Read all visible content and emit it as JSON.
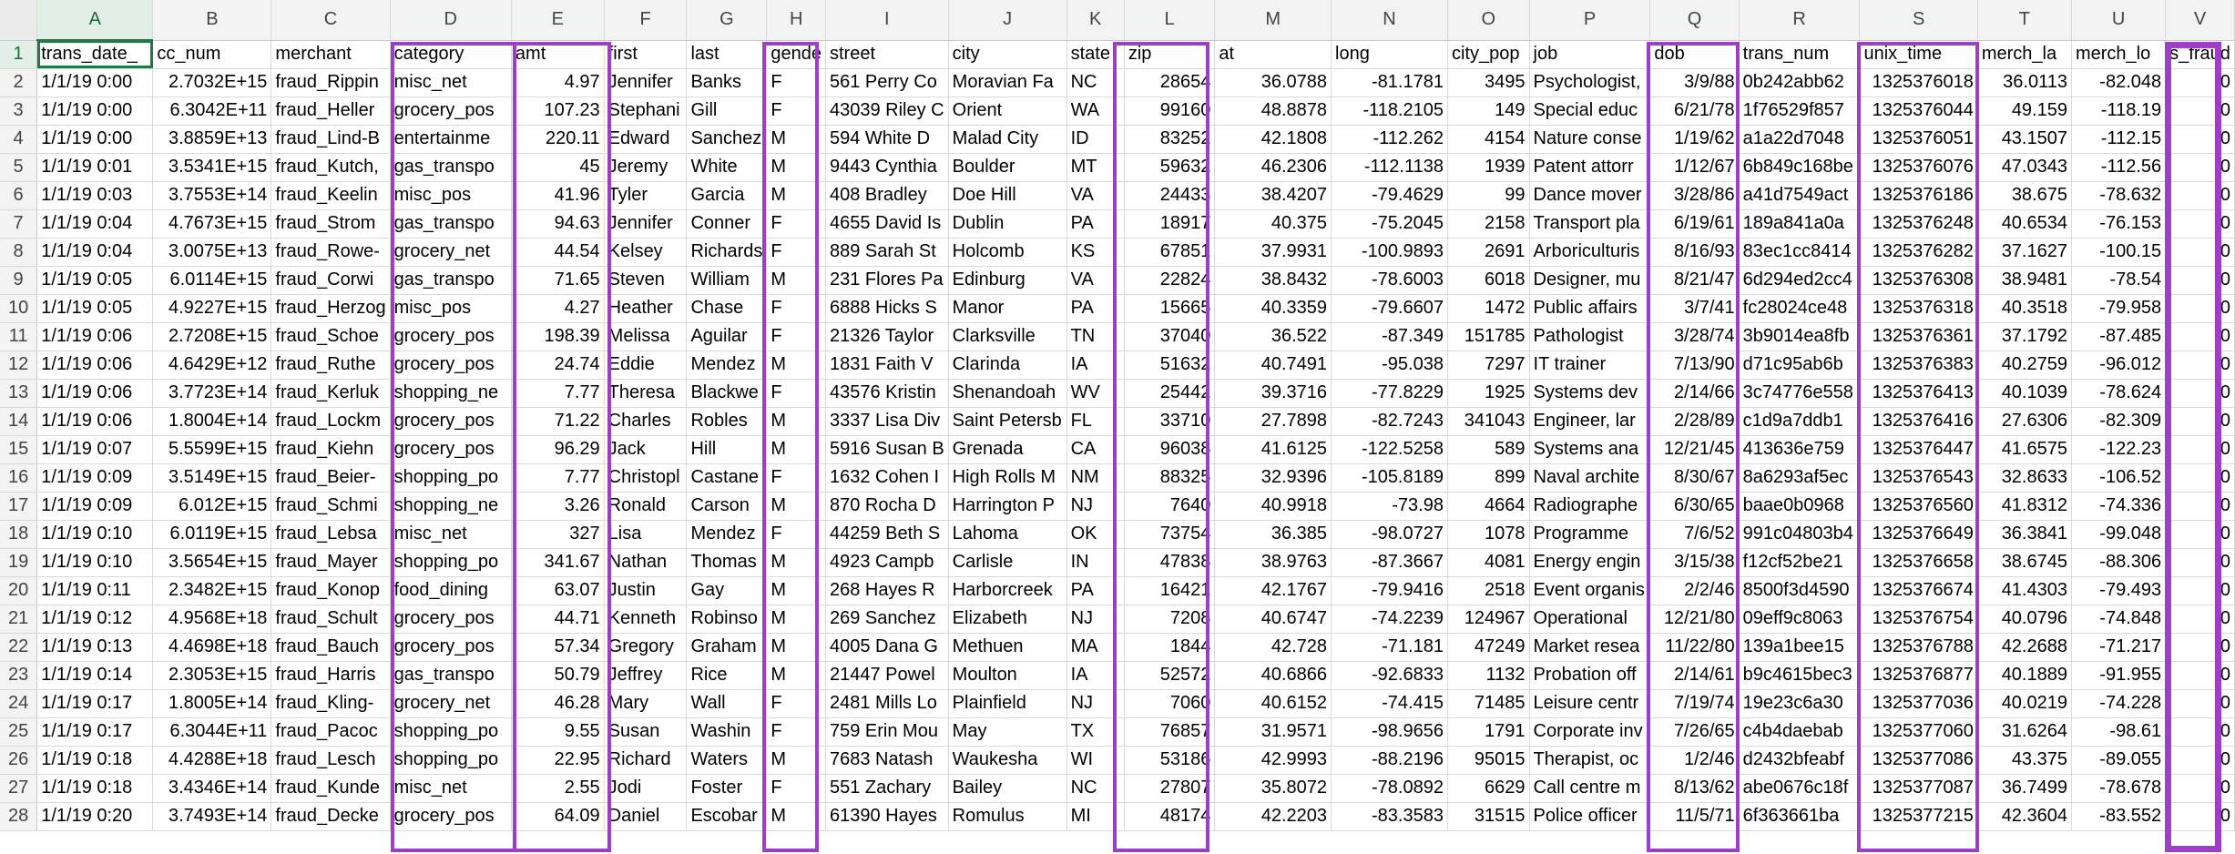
{
  "columns": [
    "A",
    "B",
    "C",
    "D",
    "E",
    "F",
    "G",
    "H",
    "I",
    "J",
    "K",
    "L",
    "M",
    "N",
    "O",
    "P",
    "Q",
    "R",
    "S",
    "T",
    "U",
    "V"
  ],
  "active_column": "A",
  "active_row": 1,
  "highlight_color": "#9b3fc5",
  "highlighted_columns": [
    "D",
    "E",
    "H",
    "L",
    "Q",
    "S",
    "V"
  ],
  "numeric_columns": [
    1,
    4,
    11,
    12,
    13,
    14,
    16,
    18,
    19,
    20,
    21
  ],
  "rows": [
    [
      "trans_date_",
      "cc_num",
      "merchant",
      "category",
      "amt",
      "first",
      "last",
      "gende",
      "street",
      "city",
      "state",
      "zip",
      "at",
      "long",
      "city_pop",
      "job",
      "dob",
      "trans_num",
      "unix_time",
      "merch_la",
      "merch_lo",
      "s_fraud"
    ],
    [
      "1/1/19 0:00",
      "2.7032E+15",
      "fraud_Rippin",
      "misc_net",
      "4.97",
      "Jennifer",
      "Banks",
      "F",
      "561 Perry Co",
      "Moravian Fa",
      "NC",
      "28654",
      "36.0788",
      "-81.1781",
      "3495",
      "Psychologist,",
      "3/9/88",
      "0b242abb62",
      "1325376018",
      "36.0113",
      "-82.048",
      "0"
    ],
    [
      "1/1/19 0:00",
      "6.3042E+11",
      "fraud_Heller",
      "grocery_pos",
      "107.23",
      "Stephani",
      "Gill",
      "F",
      "43039 Riley C",
      "Orient",
      "WA",
      "99160",
      "48.8878",
      "-118.2105",
      "149",
      "Special educ",
      "6/21/78",
      "1f76529f857",
      "1325376044",
      "49.159",
      "-118.19",
      "0"
    ],
    [
      "1/1/19 0:00",
      "3.8859E+13",
      "fraud_Lind-B",
      "entertainme",
      "220.11",
      "Edward",
      "Sanchez",
      "M",
      "594 White D",
      "Malad City",
      "ID",
      "83252",
      "42.1808",
      "-112.262",
      "4154",
      "Nature conse",
      "1/19/62",
      "a1a22d7048",
      "1325376051",
      "43.1507",
      "-112.15",
      "0"
    ],
    [
      "1/1/19 0:01",
      "3.5341E+15",
      "fraud_Kutch,",
      "gas_transpo",
      "45",
      "Jeremy",
      "White",
      "M",
      "9443 Cynthia",
      "Boulder",
      "MT",
      "59632",
      "46.2306",
      "-112.1138",
      "1939",
      "Patent attorr",
      "1/12/67",
      "6b849c168be",
      "1325376076",
      "47.0343",
      "-112.56",
      "0"
    ],
    [
      "1/1/19 0:03",
      "3.7553E+14",
      "fraud_Keelin",
      "misc_pos",
      "41.96",
      "Tyler",
      "Garcia",
      "M",
      "408 Bradley",
      "Doe Hill",
      "VA",
      "24433",
      "38.4207",
      "-79.4629",
      "99",
      "Dance mover",
      "3/28/86",
      "a41d7549act",
      "1325376186",
      "38.675",
      "-78.632",
      "0"
    ],
    [
      "1/1/19 0:04",
      "4.7673E+15",
      "fraud_Strom",
      "gas_transpo",
      "94.63",
      "Jennifer",
      "Conner",
      "F",
      "4655 David Is",
      "Dublin",
      "PA",
      "18917",
      "40.375",
      "-75.2045",
      "2158",
      "Transport pla",
      "6/19/61",
      "189a841a0a",
      "1325376248",
      "40.6534",
      "-76.153",
      "0"
    ],
    [
      "1/1/19 0:04",
      "3.0075E+13",
      "fraud_Rowe-",
      "grocery_net",
      "44.54",
      "Kelsey",
      "Richards",
      "F",
      "889 Sarah St",
      "Holcomb",
      "KS",
      "67851",
      "37.9931",
      "-100.9893",
      "2691",
      "Arboriculturis",
      "8/16/93",
      "83ec1cc8414",
      "1325376282",
      "37.1627",
      "-100.15",
      "0"
    ],
    [
      "1/1/19 0:05",
      "6.0114E+15",
      "fraud_Corwi",
      "gas_transpo",
      "71.65",
      "Steven",
      "William",
      "M",
      "231 Flores Pa",
      "Edinburg",
      "VA",
      "22824",
      "38.8432",
      "-78.6003",
      "6018",
      "Designer, mu",
      "8/21/47",
      "6d294ed2cc4",
      "1325376308",
      "38.9481",
      "-78.54",
      "0"
    ],
    [
      "1/1/19 0:05",
      "4.9227E+15",
      "fraud_Herzog",
      "misc_pos",
      "4.27",
      "Heather",
      "Chase",
      "F",
      "6888 Hicks S",
      "Manor",
      "PA",
      "15665",
      "40.3359",
      "-79.6607",
      "1472",
      "Public affairs",
      "3/7/41",
      "fc28024ce48",
      "1325376318",
      "40.3518",
      "-79.958",
      "0"
    ],
    [
      "1/1/19 0:06",
      "2.7208E+15",
      "fraud_Schoe",
      "grocery_pos",
      "198.39",
      "Melissa",
      "Aguilar",
      "F",
      "21326 Taylor",
      "Clarksville",
      "TN",
      "37040",
      "36.522",
      "-87.349",
      "151785",
      "Pathologist",
      "3/28/74",
      "3b9014ea8fb",
      "1325376361",
      "37.1792",
      "-87.485",
      "0"
    ],
    [
      "1/1/19 0:06",
      "4.6429E+12",
      "fraud_Ruthe",
      "grocery_pos",
      "24.74",
      "Eddie",
      "Mendez",
      "M",
      "1831 Faith V",
      "Clarinda",
      "IA",
      "51632",
      "40.7491",
      "-95.038",
      "7297",
      "IT trainer",
      "7/13/90",
      "d71c95ab6b",
      "1325376383",
      "40.2759",
      "-96.012",
      "0"
    ],
    [
      "1/1/19 0:06",
      "3.7723E+14",
      "fraud_Kerluk",
      "shopping_ne",
      "7.77",
      "Theresa",
      "Blackwe",
      "F",
      "43576 Kristin",
      "Shenandoah",
      "WV",
      "25442",
      "39.3716",
      "-77.8229",
      "1925",
      "Systems dev",
      "2/14/66",
      "3c74776e558",
      "1325376413",
      "40.1039",
      "-78.624",
      "0"
    ],
    [
      "1/1/19 0:06",
      "1.8004E+14",
      "fraud_Lockm",
      "grocery_pos",
      "71.22",
      "Charles",
      "Robles",
      "M",
      "3337 Lisa Div",
      "Saint Petersb",
      "FL",
      "33710",
      "27.7898",
      "-82.7243",
      "341043",
      "Engineer, lar",
      "2/28/89",
      "c1d9a7ddb1",
      "1325376416",
      "27.6306",
      "-82.309",
      "0"
    ],
    [
      "1/1/19 0:07",
      "5.5599E+15",
      "fraud_Kiehn",
      "grocery_pos",
      "96.29",
      "Jack",
      "Hill",
      "M",
      "5916 Susan B",
      "Grenada",
      "CA",
      "96038",
      "41.6125",
      "-122.5258",
      "589",
      "Systems ana",
      "12/21/45",
      "413636e759",
      "1325376447",
      "41.6575",
      "-122.23",
      "0"
    ],
    [
      "1/1/19 0:09",
      "3.5149E+15",
      "fraud_Beier-",
      "shopping_po",
      "7.77",
      "Christopl",
      "Castane",
      "F",
      "1632 Cohen I",
      "High Rolls M",
      "NM",
      "88325",
      "32.9396",
      "-105.8189",
      "899",
      "Naval archite",
      "8/30/67",
      "8a6293af5ec",
      "1325376543",
      "32.8633",
      "-106.52",
      "0"
    ],
    [
      "1/1/19 0:09",
      "6.012E+15",
      "fraud_Schmi",
      "shopping_ne",
      "3.26",
      "Ronald",
      "Carson",
      "M",
      "870 Rocha D",
      "Harrington P",
      "NJ",
      "7640",
      "40.9918",
      "-73.98",
      "4664",
      "Radiographe",
      "6/30/65",
      "baae0b0968",
      "1325376560",
      "41.8312",
      "-74.336",
      "0"
    ],
    [
      "1/1/19 0:10",
      "6.0119E+15",
      "fraud_Lebsa",
      "misc_net",
      "327",
      "Lisa",
      "Mendez",
      "F",
      "44259 Beth S",
      "Lahoma",
      "OK",
      "73754",
      "36.385",
      "-98.0727",
      "1078",
      "Programme",
      "7/6/52",
      "991c04803b4",
      "1325376649",
      "36.3841",
      "-99.048",
      "0"
    ],
    [
      "1/1/19 0:10",
      "3.5654E+15",
      "fraud_Mayer",
      "shopping_po",
      "341.67",
      "Nathan",
      "Thomas",
      "M",
      "4923 Campb",
      "Carlisle",
      "IN",
      "47838",
      "38.9763",
      "-87.3667",
      "4081",
      "Energy engin",
      "3/15/38",
      "f12cf52be21",
      "1325376658",
      "38.6745",
      "-88.306",
      "0"
    ],
    [
      "1/1/19 0:11",
      "2.3482E+15",
      "fraud_Konop",
      "food_dining",
      "63.07",
      "Justin",
      "Gay",
      "M",
      "268 Hayes R",
      "Harborcreek",
      "PA",
      "16421",
      "42.1767",
      "-79.9416",
      "2518",
      "Event organis",
      "2/2/46",
      "8500f3d4590",
      "1325376674",
      "41.4303",
      "-79.493",
      "0"
    ],
    [
      "1/1/19 0:12",
      "4.9568E+18",
      "fraud_Schult",
      "grocery_pos",
      "44.71",
      "Kenneth",
      "Robinso",
      "M",
      "269 Sanchez",
      "Elizabeth",
      "NJ",
      "7208",
      "40.6747",
      "-74.2239",
      "124967",
      "Operational",
      "12/21/80",
      "09eff9c8063",
      "1325376754",
      "40.0796",
      "-74.848",
      "0"
    ],
    [
      "1/1/19 0:13",
      "4.4698E+18",
      "fraud_Bauch",
      "grocery_pos",
      "57.34",
      "Gregory",
      "Graham",
      "M",
      "4005 Dana G",
      "Methuen",
      "MA",
      "1844",
      "42.728",
      "-71.181",
      "47249",
      "Market resea",
      "11/22/80",
      "139a1bee15",
      "1325376788",
      "42.2688",
      "-71.217",
      "0"
    ],
    [
      "1/1/19 0:14",
      "2.3053E+15",
      "fraud_Harris",
      "gas_transpo",
      "50.79",
      "Jeffrey",
      "Rice",
      "M",
      "21447 Powel",
      "Moulton",
      "IA",
      "52572",
      "40.6866",
      "-92.6833",
      "1132",
      "Probation off",
      "2/14/61",
      "b9c4615bec3",
      "1325376877",
      "40.1889",
      "-91.955",
      "0"
    ],
    [
      "1/1/19 0:17",
      "1.8005E+14",
      "fraud_Kling-",
      "grocery_net",
      "46.28",
      "Mary",
      "Wall",
      "F",
      "2481 Mills Lo",
      "Plainfield",
      "NJ",
      "7060",
      "40.6152",
      "-74.415",
      "71485",
      "Leisure centr",
      "7/19/74",
      "19e23c6a30",
      "1325377036",
      "40.0219",
      "-74.228",
      "0"
    ],
    [
      "1/1/19 0:17",
      "6.3044E+11",
      "fraud_Pacoc",
      "shopping_po",
      "9.55",
      "Susan",
      "Washin",
      "F",
      "759 Erin Mou",
      "May",
      "TX",
      "76857",
      "31.9571",
      "-98.9656",
      "1791",
      "Corporate inv",
      "7/26/65",
      "c4b4daebab",
      "1325377060",
      "31.6264",
      "-98.61",
      "0"
    ],
    [
      "1/1/19 0:18",
      "4.4288E+18",
      "fraud_Lesch",
      "shopping_po",
      "22.95",
      "Richard",
      "Waters",
      "M",
      "7683 Natash",
      "Waukesha",
      "WI",
      "53186",
      "42.9993",
      "-88.2196",
      "95015",
      "Therapist, oc",
      "1/2/46",
      "d2432bfeabf",
      "1325377086",
      "43.375",
      "-89.055",
      "0"
    ],
    [
      "1/1/19 0:18",
      "3.4346E+14",
      "fraud_Kunde",
      "misc_net",
      "2.55",
      "Jodi",
      "Foster",
      "F",
      "551 Zachary",
      "Bailey",
      "NC",
      "27807",
      "35.8072",
      "-78.0892",
      "6629",
      "Call centre m",
      "8/13/62",
      "abe0676c18f",
      "1325377087",
      "36.7499",
      "-78.678",
      "0"
    ],
    [
      "1/1/19 0:20",
      "3.7493E+14",
      "fraud_Decke",
      "grocery_pos",
      "64.09",
      "Daniel",
      "Escobar",
      "M",
      "61390 Hayes",
      "Romulus",
      "MI",
      "48174",
      "42.2203",
      "-83.3583",
      "31515",
      "Police officer",
      "11/5/71",
      "6f363661ba",
      "1325377215",
      "42.3604",
      "-83.552",
      "0"
    ]
  ]
}
